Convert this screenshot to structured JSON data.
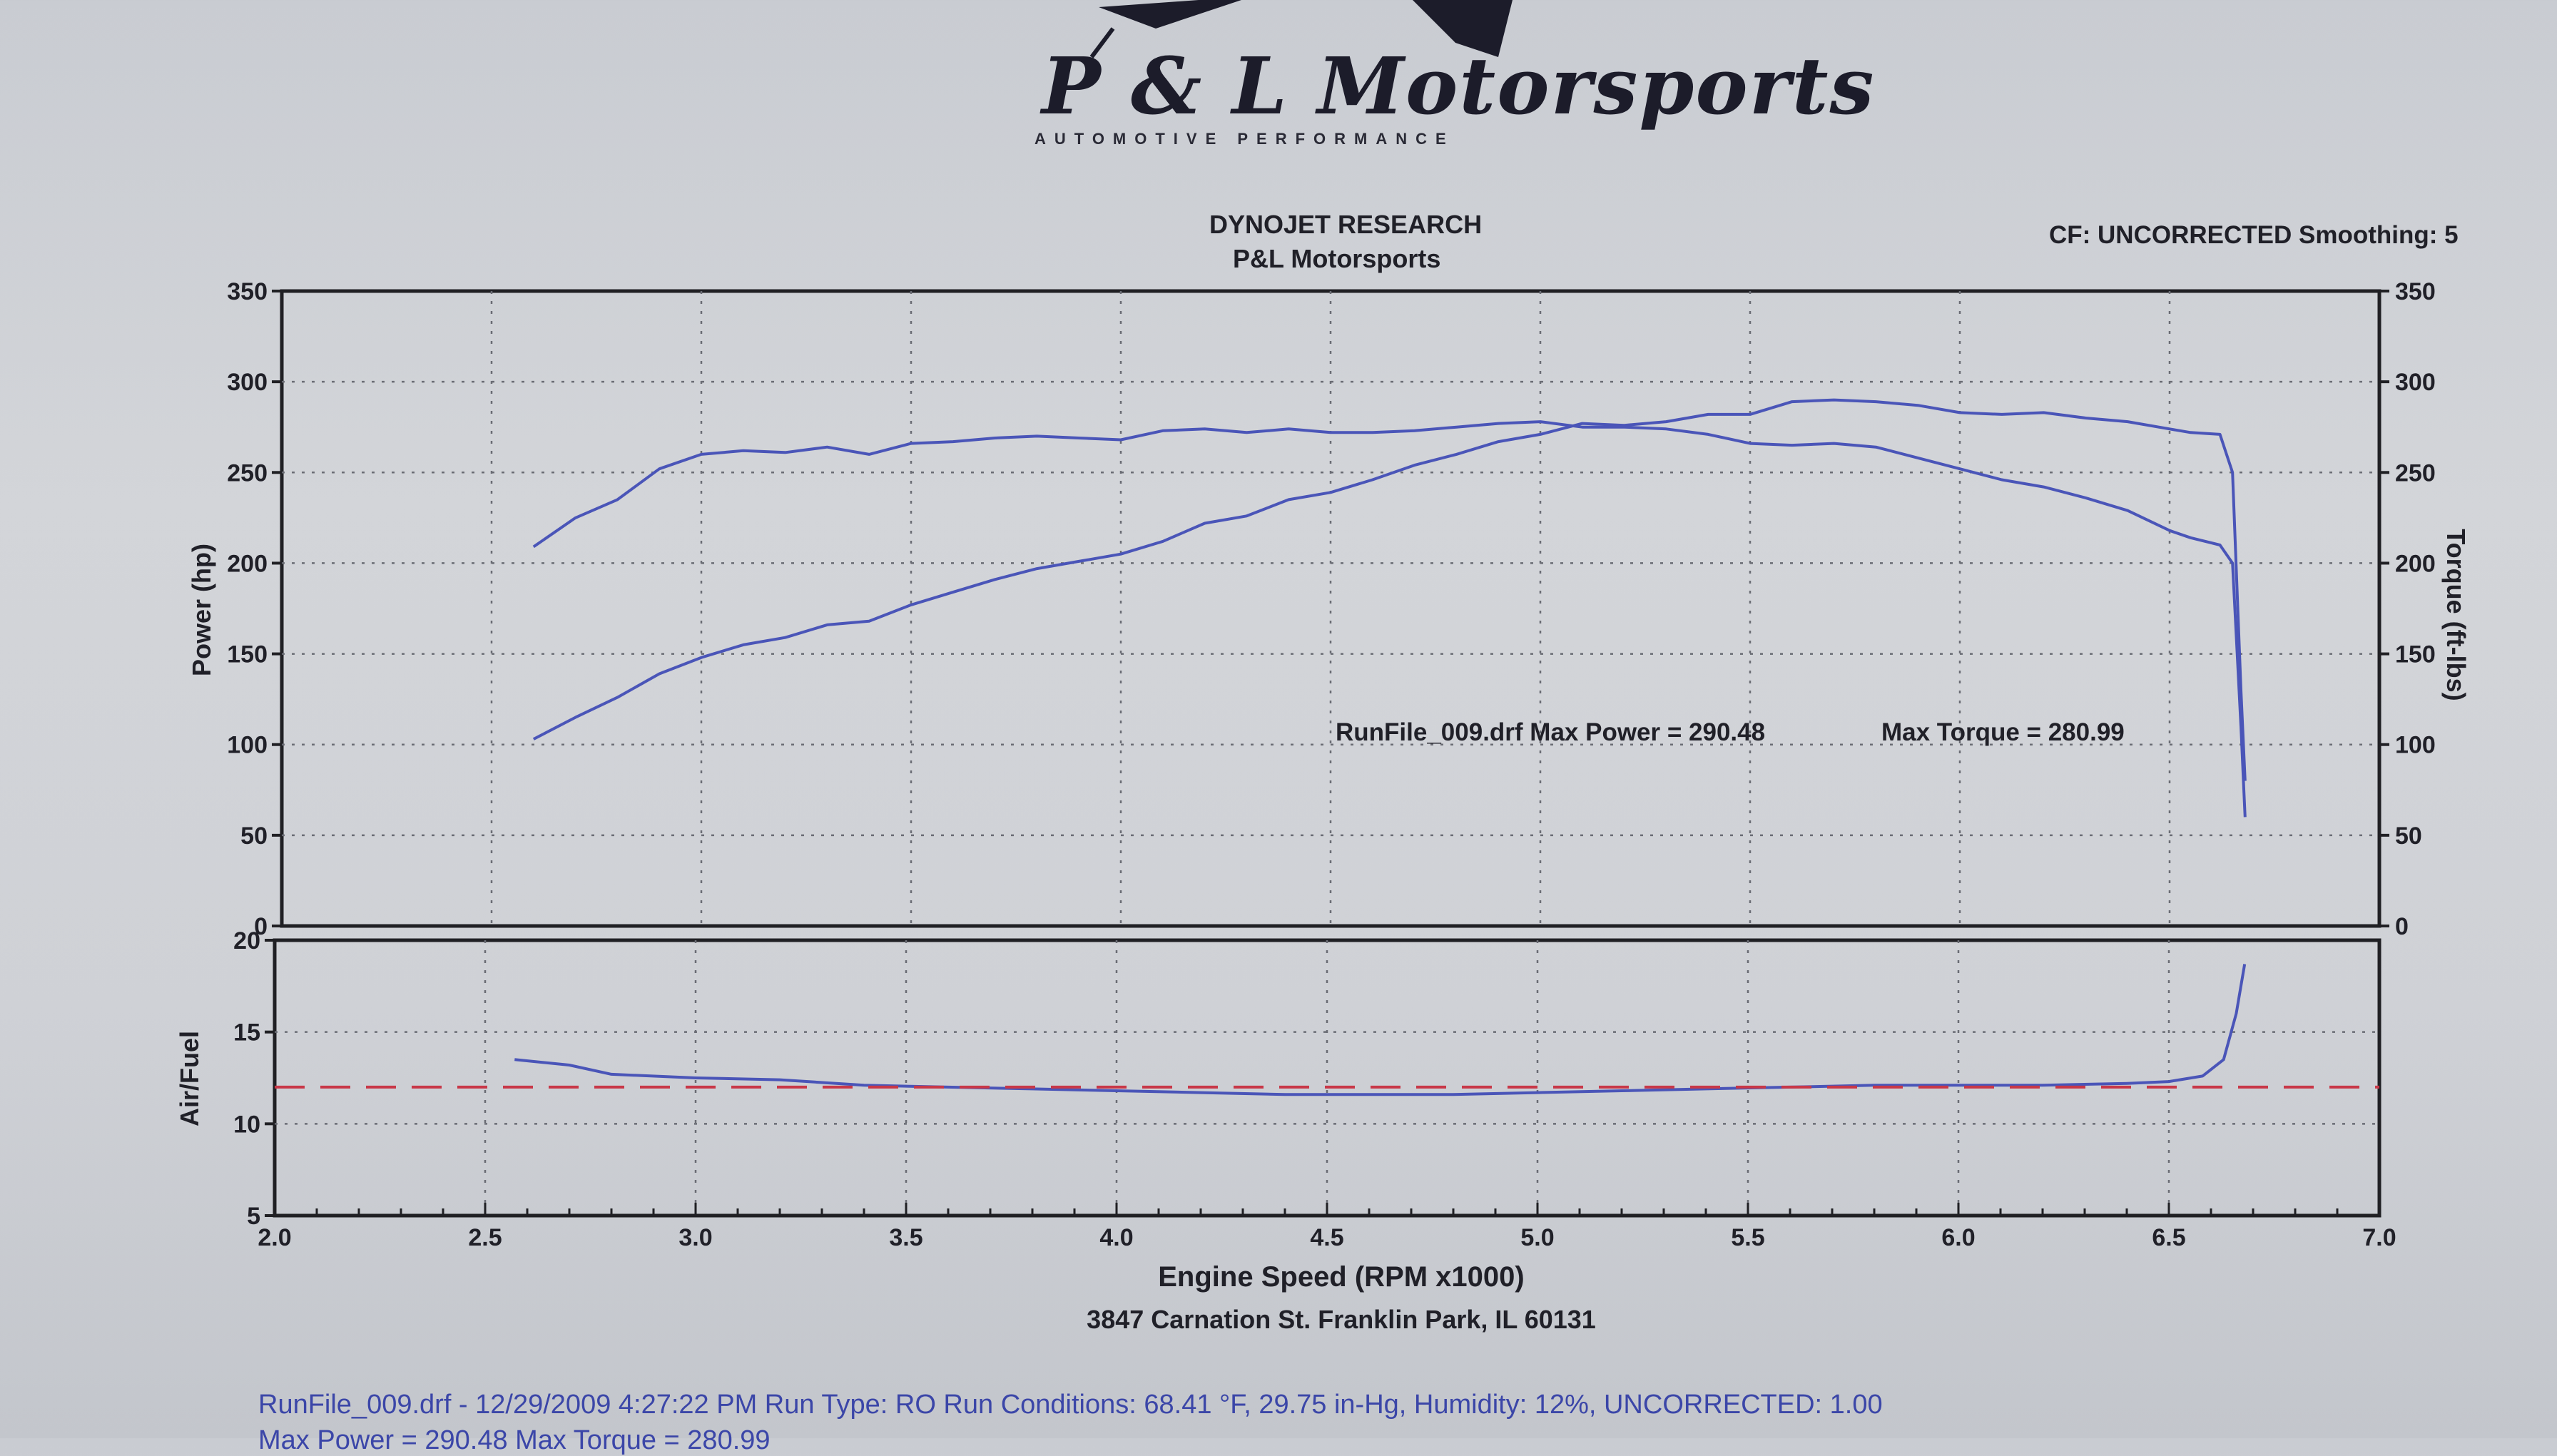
{
  "header": {
    "logo_text": "P & L Motorsports",
    "logo_tagline": "AUTOMOTIVE PERFORMANCE",
    "title_line1": "DYNOJET RESEARCH",
    "title_line2": "P&L Motorsports",
    "correction": "CF: UNCORRECTED  Smoothing: 5"
  },
  "annotation": {
    "run_summary": "RunFile_009.drf Max Power = 290.48",
    "max_torque": "Max Torque = 280.99"
  },
  "address": "3847 Carnation St. Franklin Park, IL 60131",
  "footer": {
    "line1": "RunFile_009.drf - 12/29/2009 4:27:22 PM  Run Type: RO  Run Conditions: 68.41 °F, 29.75 in-Hg,  Humidity:  12%, UNCORRECTED: 1.00",
    "line2": "Max Power = 290.48   Max Torque = 280.99"
  },
  "colors": {
    "trace": "#4a55b8",
    "afr_target": "#c83848",
    "grid": "#6a6c74",
    "frame": "#202024",
    "text": "#202028"
  },
  "chart_data": [
    {
      "type": "line",
      "title": "DYNOJET RESEARCH",
      "xlabel": "Engine Speed (RPM x1000)",
      "ylabel": "Power (hp)",
      "y2label": "Torque (ft-lbs)",
      "xlim": [
        2.0,
        7.0
      ],
      "ylim": [
        0,
        350
      ],
      "y2lim": [
        0,
        350
      ],
      "grid": true,
      "x_ticks": [
        "2.0",
        "2.5",
        "3.0",
        "3.5",
        "4.0",
        "4.5",
        "5.0",
        "5.5",
        "6.0",
        "6.5",
        "7.0"
      ],
      "y_ticks": [
        "0",
        "50",
        "100",
        "150",
        "200",
        "250",
        "300",
        "350"
      ],
      "y2_ticks": [
        "0",
        "50",
        "100",
        "150",
        "200",
        "250",
        "300",
        "350"
      ],
      "series": [
        {
          "x": [
            2.6,
            2.7,
            2.8,
            2.9,
            3.0,
            3.1,
            3.2,
            3.3,
            3.4,
            3.5,
            3.6,
            3.7,
            3.8,
            3.9,
            4.0,
            4.1,
            4.2,
            4.3,
            4.4,
            4.5,
            4.6,
            4.7,
            4.8,
            4.9,
            5.0,
            5.1,
            5.2,
            5.3,
            5.4,
            5.5,
            5.6,
            5.7,
            5.8,
            5.9,
            6.0,
            6.1,
            6.2,
            6.3,
            6.4,
            6.5,
            6.55,
            6.62,
            6.65,
            6.67,
            6.68
          ],
          "y": [
            103,
            115,
            126,
            139,
            148,
            155,
            159,
            166,
            168,
            177,
            184,
            191,
            197,
            201,
            205,
            212,
            222,
            226,
            235,
            239,
            246,
            254,
            260,
            267,
            271,
            277,
            276,
            278,
            282,
            282,
            289,
            290,
            289,
            287,
            283,
            282,
            283,
            280,
            278,
            274,
            272,
            271,
            250,
            130,
            80
          ]
        },
        {
          "x": [
            2.6,
            2.7,
            2.8,
            2.9,
            3.0,
            3.1,
            3.2,
            3.3,
            3.4,
            3.5,
            3.6,
            3.7,
            3.8,
            3.9,
            4.0,
            4.1,
            4.2,
            4.3,
            4.4,
            4.5,
            4.6,
            4.7,
            4.8,
            4.9,
            5.0,
            5.1,
            5.2,
            5.3,
            5.4,
            5.5,
            5.6,
            5.7,
            5.8,
            5.9,
            6.0,
            6.1,
            6.2,
            6.3,
            6.4,
            6.5,
            6.55,
            6.62,
            6.65,
            6.67,
            6.68
          ],
          "y": [
            209,
            225,
            235,
            252,
            260,
            262,
            261,
            264,
            260,
            266,
            267,
            269,
            270,
            269,
            268,
            273,
            274,
            272,
            274,
            272,
            272,
            273,
            275,
            277,
            278,
            275,
            275,
            274,
            271,
            266,
            265,
            266,
            264,
            258,
            252,
            246,
            242,
            236,
            229,
            218,
            214,
            210,
            200,
            110,
            60
          ]
        }
      ]
    },
    {
      "type": "line",
      "xlabel": "Engine Speed (RPM x1000)",
      "ylabel": "Air/Fuel",
      "xlim": [
        2.0,
        7.0
      ],
      "ylim": [
        5,
        20
      ],
      "grid": true,
      "y_ticks": [
        "5",
        "10",
        "15",
        "20"
      ],
      "series": [
        {
          "x": [
            2.57,
            2.7,
            2.8,
            3.0,
            3.2,
            3.4,
            3.6,
            3.8,
            4.0,
            4.2,
            4.4,
            4.6,
            4.8,
            5.0,
            5.2,
            5.4,
            5.6,
            5.8,
            6.0,
            6.2,
            6.4,
            6.5,
            6.58,
            6.63,
            6.66,
            6.68
          ],
          "y": [
            13.5,
            13.2,
            12.7,
            12.5,
            12.4,
            12.1,
            12.0,
            11.9,
            11.8,
            11.7,
            11.6,
            11.6,
            11.6,
            11.7,
            11.8,
            11.9,
            12.0,
            12.1,
            12.1,
            12.1,
            12.2,
            12.3,
            12.6,
            13.5,
            16.0,
            18.7
          ]
        },
        {
          "x": [
            2.0,
            7.0
          ],
          "y": [
            12.0,
            12.0
          ]
        }
      ]
    }
  ]
}
